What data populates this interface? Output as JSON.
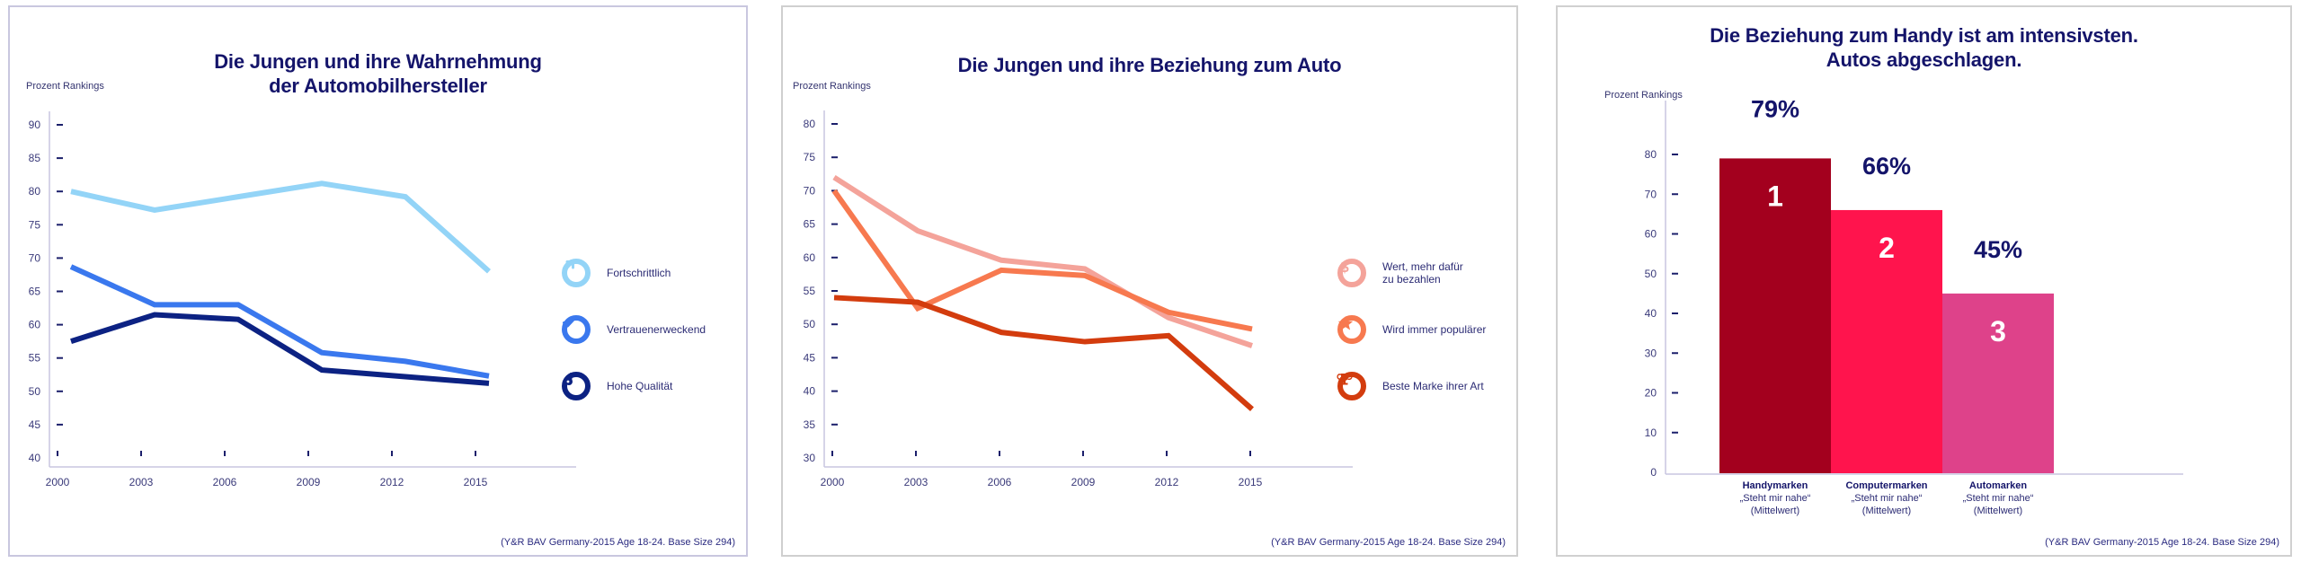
{
  "colors": {
    "navy_text": "#14146a",
    "axis": "#c8c6e0",
    "tick": "#1b1f6b"
  },
  "chart_data": [
    {
      "type": "line",
      "title": "Die Jungen und ihre Wahrnehmung der Automobilhersteller",
      "title_lines": [
        "Die Jungen und ihre Wahrnehmung",
        "der Automobilhersteller"
      ],
      "ylabel": "Prozent Rankings",
      "xlabel": "",
      "x": [
        "2000",
        "2003",
        "2006",
        "2009",
        "2012",
        "2015"
      ],
      "yticks": [
        40,
        45,
        50,
        55,
        60,
        65,
        70,
        75,
        80,
        85,
        90
      ],
      "ylim": [
        40,
        90
      ],
      "grid": false,
      "legend_position": "right",
      "series": [
        {
          "name": "Fortschrittlich",
          "color": "#93d4f7",
          "icon": "arrow-up-right-icon",
          "values": [
            80,
            77.2,
            79.2,
            81.2,
            79.2,
            68
          ]
        },
        {
          "name": "Vertrauenerweckend",
          "color": "#3a78ee",
          "icon": "checkmark-icon",
          "values": [
            68.7,
            63,
            63,
            55.8,
            54.5,
            52.3
          ]
        },
        {
          "name": "Hohe Qualität",
          "color": "#0c2283",
          "icon": "ok-hand-icon",
          "values": [
            57.5,
            61.5,
            60.8,
            53.2,
            52.2,
            51.2
          ]
        }
      ],
      "source": "(Y&R BAV Germany-2015 Age 18-24. Base Size 294)"
    },
    {
      "type": "line",
      "title": "Die Jungen und ihre Beziehung zum Auto",
      "title_lines": [
        "Die Jungen und ihre Beziehung zum Auto"
      ],
      "ylabel": "Prozent Rankings",
      "xlabel": "",
      "x": [
        "2000",
        "2003",
        "2006",
        "2009",
        "2012",
        "2015"
      ],
      "yticks": [
        30,
        35,
        40,
        45,
        50,
        55,
        60,
        65,
        70,
        75,
        80
      ],
      "ylim": [
        30,
        80
      ],
      "grid": false,
      "legend_position": "right",
      "series": [
        {
          "name": "Wert, mehr dafür zu bezahlen",
          "label_lines": [
            "Wert, mehr dafür",
            "zu bezahlen"
          ],
          "color": "#f4a39a",
          "icon": "dollar-icon",
          "values": [
            72,
            64,
            59.6,
            58.3,
            51,
            46.8
          ]
        },
        {
          "name": "Wird immer populärer",
          "label_lines": [
            "Wird immer populärer"
          ],
          "color": "#f7794f",
          "icon": "star-icon",
          "values": [
            70,
            52.4,
            58.1,
            57.3,
            51.8,
            49.3
          ]
        },
        {
          "name": "Beste Marke ihrer Art",
          "label_lines": [
            "Beste Marke ihrer Art"
          ],
          "color": "#d33c0e",
          "icon": "trophy-icon",
          "values": [
            54,
            53.3,
            48.8,
            47.4,
            48.3,
            37.3
          ]
        }
      ],
      "source": "(Y&R BAV Germany-2015 Age 18-24. Base Size 294)"
    },
    {
      "type": "bar",
      "title": "Die Beziehung zum Handy ist am intensivsten. Autos abgeschlagen.",
      "title_lines": [
        "Die Beziehung zum Handy ist am intensivsten.",
        "Autos abgeschlagen."
      ],
      "ylabel": "Prozent Rankings",
      "xlabel": "",
      "yticks": [
        0,
        10,
        20,
        30,
        40,
        50,
        60,
        70,
        80
      ],
      "ylim": [
        0,
        80
      ],
      "grid": false,
      "categories": [
        "Handymarken",
        "Computermarken",
        "Automarken"
      ],
      "category_sublabels": [
        "„Steht mir nahe“",
        "(Mittelwert)"
      ],
      "values": [
        79,
        66,
        45
      ],
      "value_labels": [
        "79%",
        "66%",
        "45%"
      ],
      "ranks": [
        "1",
        "2",
        "3"
      ],
      "colors": [
        "#a3001e",
        "#ff144d",
        "#de428a"
      ],
      "source": "(Y&R BAV Germany-2015 Age 18-24. Base Size 294)"
    }
  ]
}
